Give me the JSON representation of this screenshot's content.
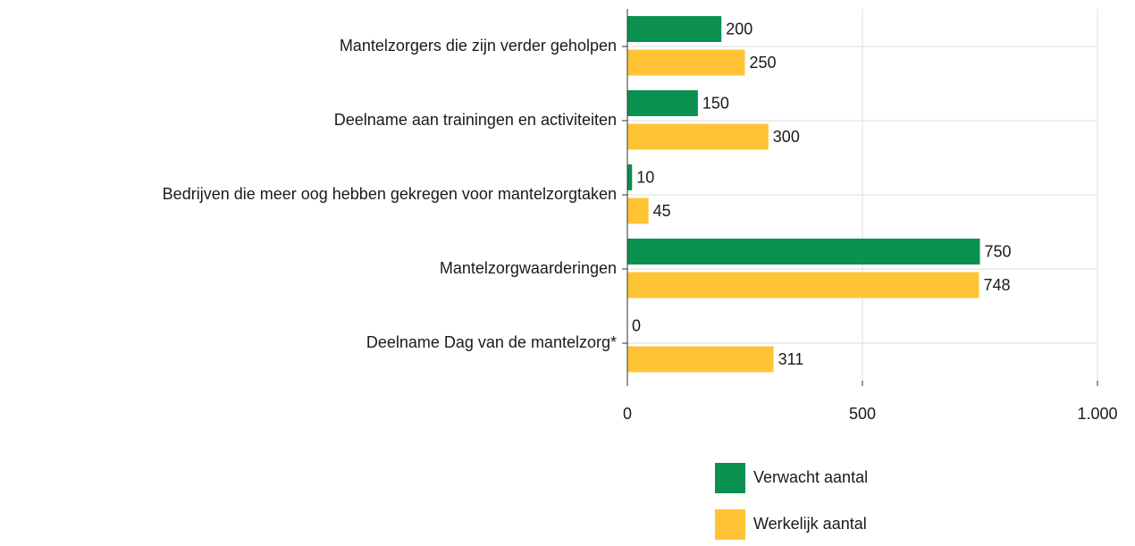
{
  "chart_data": {
    "type": "bar",
    "orientation": "horizontal",
    "categories": [
      "Mantelzorgers die zijn verder geholpen",
      "Deelname aan trainingen en activiteiten",
      "Bedrijven die meer oog hebben gekregen voor mantelzorgtaken",
      "Mantelzorgwaarderingen",
      "Deelname Dag van de mantelzorg*"
    ],
    "series": [
      {
        "name": "Verwacht aantal",
        "color": "#0a9150",
        "values": [
          200,
          150,
          10,
          750,
          0
        ]
      },
      {
        "name": "Werkelijk aantal",
        "color": "#ffc436",
        "values": [
          250,
          300,
          45,
          748,
          311
        ]
      }
    ],
    "xlim": [
      0,
      1000
    ],
    "xticks": [
      0,
      500,
      {
        "value": 1000,
        "label": "1.000"
      }
    ],
    "grid": true,
    "legend": "bottom"
  }
}
